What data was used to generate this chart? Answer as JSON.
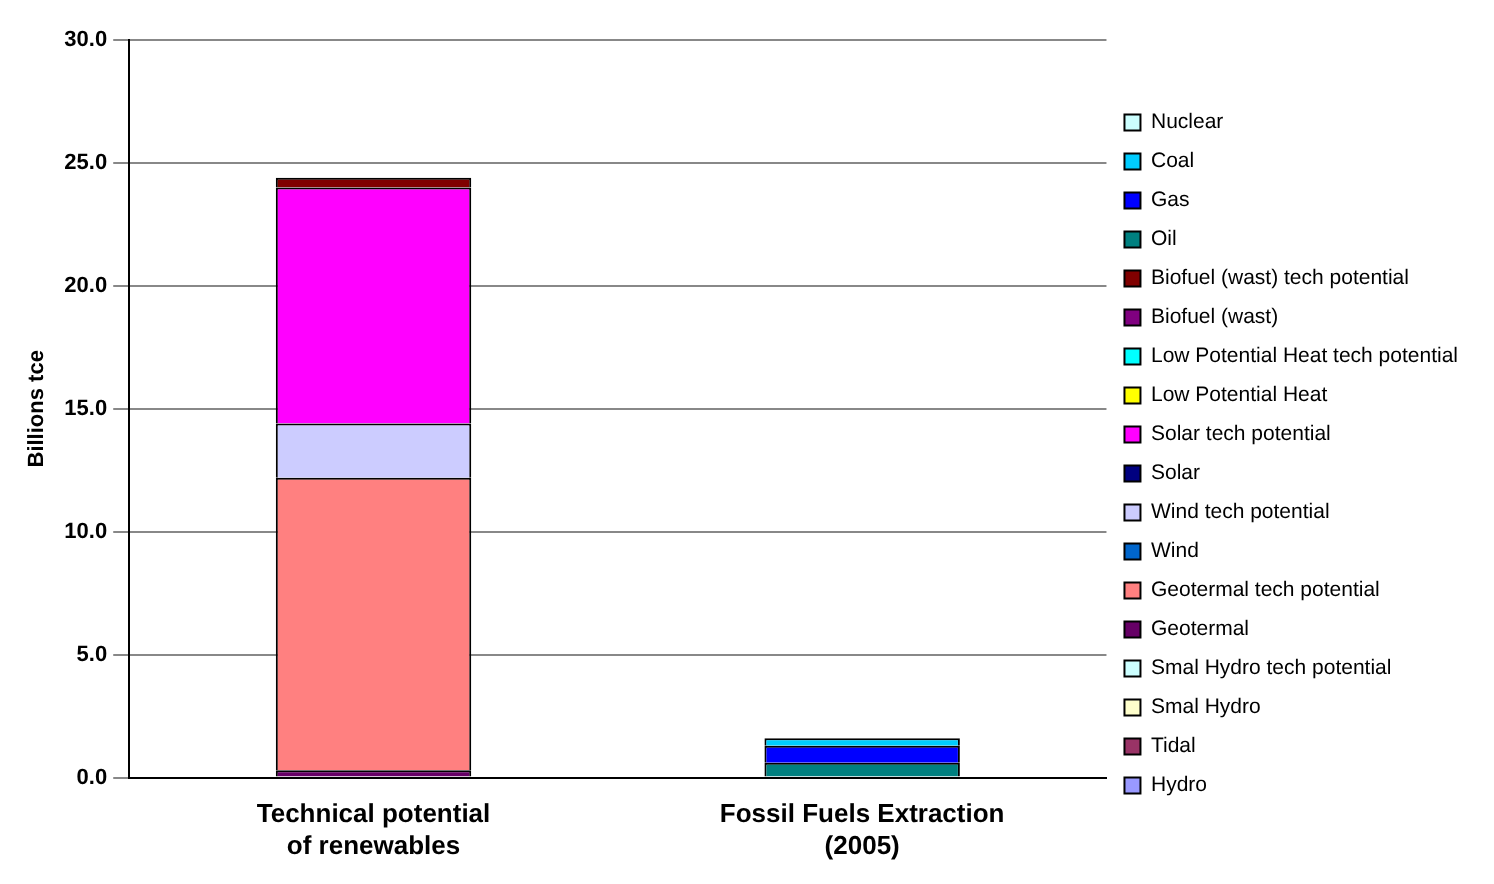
{
  "chart_data": {
    "type": "bar",
    "stacked": true,
    "ylabel": "Billions tce",
    "categories": [
      "Technical potential\nof renewables",
      "Fossil Fuels Extraction\n(2005)"
    ],
    "ylim": [
      0,
      30
    ],
    "yticks": [
      {
        "value": 0,
        "label": "0.0"
      },
      {
        "value": 5,
        "label": "5.0"
      },
      {
        "value": 10,
        "label": "10.0"
      },
      {
        "value": 15,
        "label": "15.0"
      },
      {
        "value": 20,
        "label": "20.0"
      },
      {
        "value": 25,
        "label": "25.0"
      },
      {
        "value": 30,
        "label": "30.0"
      }
    ],
    "grid": "y",
    "legend": "right",
    "series": [
      {
        "name": "Hydro",
        "color": "#9999ff",
        "values": [
          0,
          0
        ]
      },
      {
        "name": "Tidal",
        "color": "#993366",
        "values": [
          0,
          0
        ]
      },
      {
        "name": "Smal Hydro",
        "color": "#ffffcc",
        "values": [
          0,
          0
        ]
      },
      {
        "name": "Smal Hydro tech potential",
        "color": "#ccffff",
        "values": [
          0,
          0
        ]
      },
      {
        "name": "Geotermal",
        "color": "#660066",
        "values": [
          0.3,
          0
        ]
      },
      {
        "name": "Geotermal tech potential",
        "color": "#ff8080",
        "values": [
          11.9,
          0
        ]
      },
      {
        "name": "Wind",
        "color": "#0066cc",
        "values": [
          0,
          0
        ]
      },
      {
        "name": "Wind tech potential",
        "color": "#ccccff",
        "values": [
          2.2,
          0
        ]
      },
      {
        "name": "Solar",
        "color": "#000080",
        "values": [
          0,
          0
        ]
      },
      {
        "name": "Solar tech potential",
        "color": "#ff00ff",
        "values": [
          9.6,
          0
        ]
      },
      {
        "name": "Low Potential Heat",
        "color": "#ffff00",
        "values": [
          0,
          0
        ]
      },
      {
        "name": "Low Potential Heat tech potential",
        "color": "#00ffff",
        "values": [
          0,
          0
        ]
      },
      {
        "name": "Biofuel (wast)",
        "color": "#800080",
        "values": [
          0,
          0
        ]
      },
      {
        "name": "Biofuel (wast) tech potential",
        "color": "#800000",
        "values": [
          0.4,
          0
        ]
      },
      {
        "name": "Oil",
        "color": "#008080",
        "values": [
          0,
          0.6
        ]
      },
      {
        "name": "Gas",
        "color": "#0000ff",
        "values": [
          0,
          0.7
        ]
      },
      {
        "name": "Coal",
        "color": "#00ccff",
        "values": [
          0,
          0.3
        ]
      },
      {
        "name": "Nuclear",
        "color": "#ccffff",
        "values": [
          0,
          0
        ]
      }
    ]
  }
}
